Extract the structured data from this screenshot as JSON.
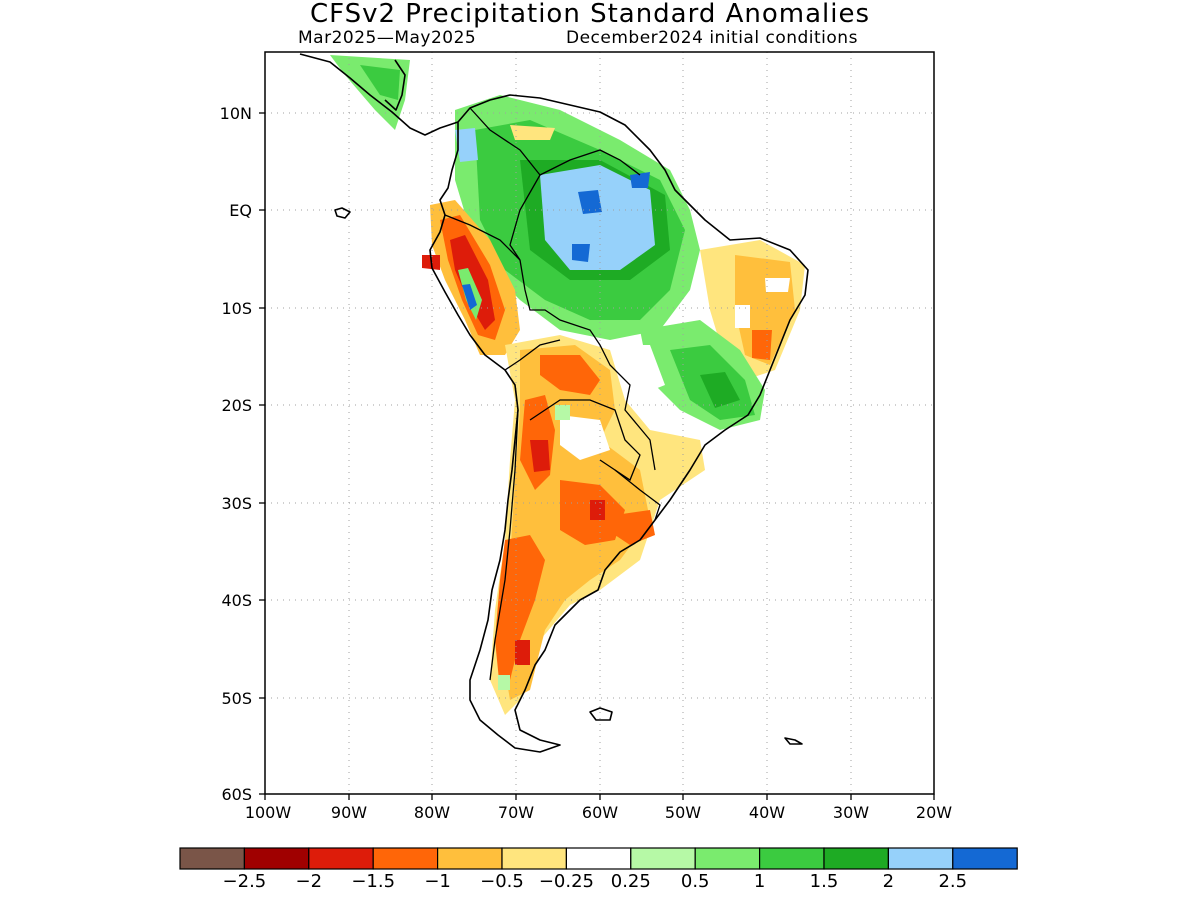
{
  "title": "CFSv2 Precipitation Standard Anomalies",
  "subtitle_left": "Mar2025—May2025",
  "subtitle_right": "December2024 initial conditions",
  "lat_labels": [
    "10N",
    "EQ",
    "10S",
    "20S",
    "30S",
    "40S",
    "50S",
    "60S"
  ],
  "lon_labels": [
    "100W",
    "90W",
    "80W",
    "70W",
    "60W",
    "50W",
    "40W",
    "30W",
    "20W"
  ],
  "colorbar": {
    "colors": [
      "#7a5548",
      "#a00000",
      "#dd1c0a",
      "#ff6608",
      "#ffbf3c",
      "#ffe57e",
      "#ffffff",
      "#b6f9a6",
      "#7aeb6e",
      "#3bcb40",
      "#1eab24",
      "#96d1fa",
      "#1469d4"
    ],
    "labels": [
      "−2.5",
      "−2",
      "−1.5",
      "−1",
      "−0.5",
      "−0.25",
      "0.25",
      "0.5",
      "1",
      "1.5",
      "2",
      "2.5"
    ]
  },
  "colors": {
    "frame": "#000000",
    "grid": "#a0a0a0",
    "coast": "#000000"
  }
}
